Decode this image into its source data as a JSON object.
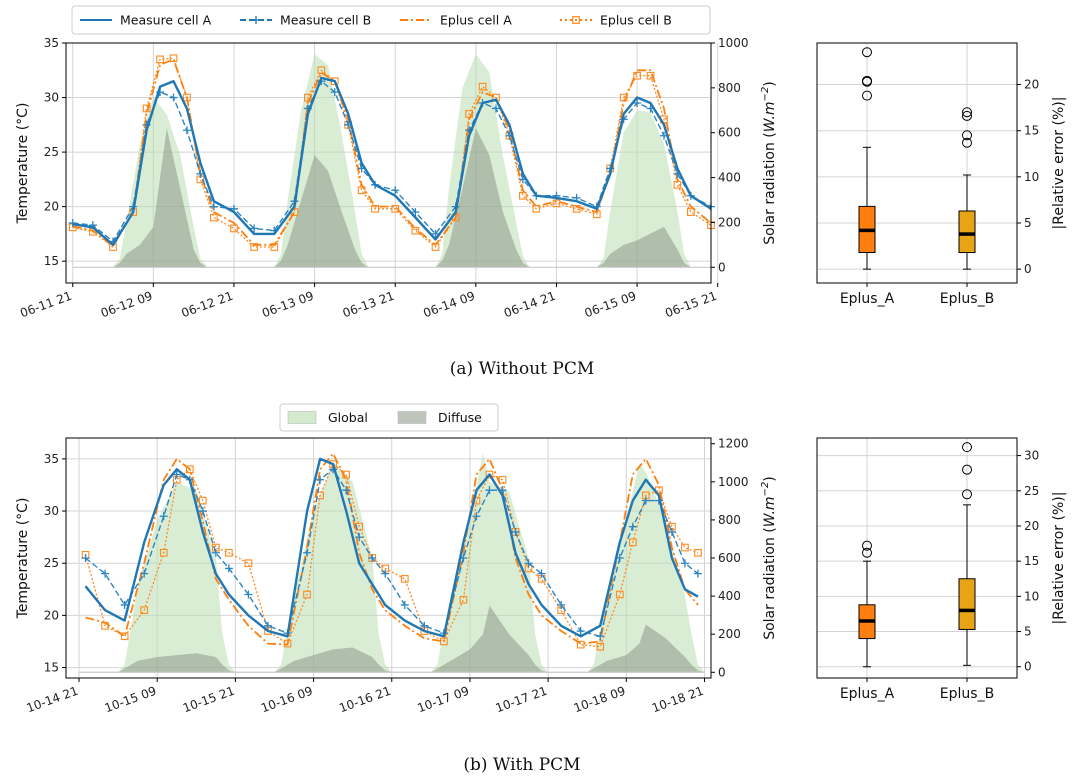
{
  "legend_top": [
    {
      "label": "Measure cell A",
      "color": "#1f77b4",
      "style": "solid"
    },
    {
      "label": "Measure cell B",
      "color": "#1f77b4",
      "style": "dashed-plus"
    },
    {
      "label": "Eplus cell A",
      "color": "#ff7f0e",
      "style": "dashdot"
    },
    {
      "label": "Eplus cell B",
      "color": "#ff7f0e",
      "style": "dotted-square"
    }
  ],
  "legend_mid": [
    {
      "label": "Global",
      "color": "#cfe8c8"
    },
    {
      "label": "Diffuse",
      "color": "#b9bfb4"
    }
  ],
  "chart_data": [
    {
      "type": "line",
      "caption": "(a) Without PCM",
      "ylabel": "Temperature (°C)",
      "y2label": "Solar radiation (W.m^-2)",
      "ylim": [
        13,
        35
      ],
      "y2lim": [
        -70,
        1000
      ],
      "yticks": [
        15,
        20,
        25,
        30,
        35
      ],
      "y2ticks": [
        0,
        200,
        400,
        600,
        800,
        1000
      ],
      "xlim": [
        -1,
        95
      ],
      "xticks": [
        {
          "x": 0,
          "label": "06-11 21"
        },
        {
          "x": 12,
          "label": "06-12 09"
        },
        {
          "x": 24,
          "label": "06-12 21"
        },
        {
          "x": 36,
          "label": "06-13 09"
        },
        {
          "x": 48,
          "label": "06-13 21"
        },
        {
          "x": 60,
          "label": "06-14 09"
        },
        {
          "x": 72,
          "label": "06-14 21"
        },
        {
          "x": 84,
          "label": "06-15 09"
        },
        {
          "x": 96,
          "label": "06-15 21"
        }
      ],
      "x_unit": "hours after 06-11 21:00",
      "temperature": {
        "x": [
          0,
          3,
          6,
          9,
          11,
          13,
          15,
          17,
          19,
          21,
          24,
          27,
          30,
          33,
          35,
          37,
          39,
          41,
          43,
          45,
          48,
          51,
          54,
          57,
          59,
          61,
          63,
          65,
          67,
          69,
          72,
          75,
          78,
          80,
          82,
          84,
          86,
          88,
          90,
          92,
          95
        ],
        "Measure cell A": [
          18.4,
          18.1,
          16.5,
          19.5,
          27.0,
          31.0,
          31.5,
          29.0,
          24.0,
          20.5,
          19.5,
          17.5,
          17.5,
          20.0,
          28.5,
          31.8,
          31.5,
          28.5,
          24.0,
          22.0,
          21.0,
          19.0,
          17.0,
          19.5,
          26.5,
          29.5,
          29.8,
          27.5,
          23.0,
          21.0,
          20.8,
          20.5,
          19.8,
          23.0,
          28.5,
          30.0,
          29.5,
          27.5,
          23.5,
          21.0,
          19.8
        ],
        "Measure cell B": [
          18.5,
          18.3,
          16.8,
          20.0,
          27.5,
          30.5,
          30.0,
          27.0,
          23.0,
          20.0,
          19.8,
          18.0,
          17.8,
          20.5,
          29.0,
          31.5,
          30.5,
          27.5,
          23.5,
          22.0,
          21.5,
          19.5,
          17.5,
          20.0,
          27.0,
          29.5,
          29.0,
          26.5,
          22.5,
          21.0,
          21.0,
          20.8,
          20.0,
          23.5,
          28.0,
          29.5,
          29.0,
          26.5,
          23.0,
          21.0,
          20.0
        ],
        "Eplus cell A": [
          18.2,
          17.8,
          16.4,
          19.5,
          28.5,
          33.0,
          33.5,
          30.0,
          23.0,
          19.5,
          18.5,
          16.5,
          16.5,
          19.5,
          29.5,
          32.3,
          31.5,
          28.0,
          22.0,
          20.0,
          20.0,
          18.0,
          16.5,
          19.0,
          28.0,
          30.5,
          30.0,
          27.0,
          21.5,
          20.0,
          20.5,
          20.0,
          19.5,
          23.0,
          29.5,
          32.5,
          32.5,
          29.0,
          22.5,
          20.0,
          18.5
        ],
        "Eplus cell B": [
          18.1,
          17.7,
          16.3,
          19.5,
          29.0,
          33.5,
          33.6,
          30.0,
          22.5,
          19.0,
          18.0,
          16.3,
          16.3,
          19.5,
          30.0,
          32.5,
          31.5,
          27.5,
          21.5,
          19.8,
          19.8,
          17.8,
          16.3,
          19.0,
          28.5,
          31.0,
          30.0,
          26.5,
          21.0,
          19.8,
          20.3,
          19.8,
          19.3,
          23.5,
          30.0,
          32.0,
          32.0,
          28.0,
          22.0,
          19.5,
          18.3
        ]
      },
      "radiation": {
        "x": [
          0,
          6,
          7,
          8,
          10,
          12,
          14,
          16,
          18,
          19,
          20,
          30,
          31,
          32,
          34,
          36,
          38,
          40,
          42,
          43,
          44,
          54,
          55,
          56,
          58,
          60,
          62,
          64,
          66,
          67,
          68,
          78,
          79,
          80,
          82,
          84,
          86,
          88,
          90,
          91,
          92,
          95
        ],
        "Global": [
          0,
          0,
          40,
          200,
          550,
          760,
          680,
          500,
          180,
          40,
          0,
          0,
          60,
          300,
          700,
          950,
          900,
          600,
          250,
          60,
          0,
          0,
          60,
          350,
          800,
          950,
          870,
          500,
          200,
          50,
          0,
          0,
          40,
          250,
          600,
          700,
          690,
          550,
          250,
          60,
          0,
          0
        ],
        "Diffuse": [
          0,
          0,
          20,
          60,
          100,
          180,
          620,
          350,
          80,
          20,
          0,
          0,
          30,
          100,
          300,
          500,
          430,
          250,
          80,
          20,
          0,
          0,
          30,
          100,
          350,
          620,
          500,
          250,
          80,
          20,
          0,
          0,
          20,
          60,
          100,
          120,
          150,
          180,
          80,
          20,
          0,
          0
        ]
      }
    },
    {
      "type": "box",
      "ylabel": "|Relative error (%)|",
      "ylim": [
        -1.5,
        24.5
      ],
      "yticks": [
        0,
        5,
        10,
        15,
        20
      ],
      "categories": [
        "Eplus_A",
        "Eplus_B"
      ],
      "colors": [
        "#ff7f0e",
        "#e8a317"
      ],
      "boxes": [
        {
          "whislo": 0,
          "q1": 1.8,
          "med": 4.2,
          "q3": 6.8,
          "whishi": 13.2,
          "fliers": [
            18.8,
            20.3,
            20.4,
            23.5
          ]
        },
        {
          "whislo": 0,
          "q1": 1.8,
          "med": 3.8,
          "q3": 6.3,
          "whishi": 10.2,
          "fliers": [
            13.7,
            14.5,
            16.6,
            17.0
          ]
        }
      ]
    },
    {
      "type": "line",
      "caption": "(b) With PCM",
      "ylabel": "Temperature (°C)",
      "y2label": "Solar radiation (W.m^-2)",
      "ylim": [
        14,
        37
      ],
      "y2lim": [
        -30,
        1230
      ],
      "yticks": [
        15,
        20,
        25,
        30,
        35
      ],
      "y2ticks": [
        0,
        200,
        400,
        600,
        800,
        1000,
        1200
      ],
      "xlim": [
        -2,
        97
      ],
      "xticks": [
        {
          "x": 0,
          "label": "10-14 21"
        },
        {
          "x": 12,
          "label": "10-15 09"
        },
        {
          "x": 24,
          "label": "10-15 21"
        },
        {
          "x": 36,
          "label": "10-16 09"
        },
        {
          "x": 48,
          "label": "10-16 21"
        },
        {
          "x": 60,
          "label": "10-17 09"
        },
        {
          "x": 72,
          "label": "10-17 21"
        },
        {
          "x": 84,
          "label": "10-18 09"
        },
        {
          "x": 96,
          "label": "10-18 21"
        }
      ],
      "x_unit": "hours after 10-14 21:00",
      "temperature": {
        "x": [
          1,
          4,
          7,
          10,
          13,
          15,
          17,
          19,
          21,
          23,
          26,
          29,
          32,
          35,
          37,
          39,
          41,
          43,
          45,
          47,
          50,
          53,
          56,
          59,
          61,
          63,
          65,
          67,
          69,
          71,
          74,
          77,
          80,
          83,
          85,
          87,
          89,
          91,
          93,
          95
        ],
        "Measure cell A": [
          22.8,
          20.5,
          19.5,
          27.0,
          32.5,
          34.0,
          33.0,
          28.0,
          24.0,
          22.0,
          20.0,
          18.5,
          18.0,
          30.0,
          35.0,
          34.5,
          30.0,
          25.0,
          23.0,
          21.0,
          19.5,
          18.5,
          18.0,
          27.0,
          32.0,
          33.5,
          31.5,
          26.0,
          23.0,
          21.0,
          19.0,
          18.0,
          19.0,
          27.0,
          31.0,
          33.0,
          31.5,
          25.5,
          22.5,
          21.8
        ],
        "Measure cell B": [
          25.5,
          24.0,
          21.0,
          24.0,
          29.5,
          33.5,
          33.0,
          30.0,
          26.0,
          24.5,
          22.0,
          19.0,
          18.3,
          26.0,
          33.0,
          34.0,
          32.0,
          27.5,
          25.5,
          24.0,
          21.0,
          19.0,
          18.3,
          25.5,
          29.5,
          32.0,
          32.0,
          28.0,
          25.0,
          24.0,
          21.0,
          18.5,
          18.0,
          25.5,
          28.5,
          31.0,
          31.0,
          28.0,
          25.0,
          24.0
        ],
        "Eplus cell A": [
          19.8,
          19.3,
          18.0,
          25.0,
          33.0,
          35.0,
          34.0,
          29.0,
          23.5,
          21.5,
          19.0,
          17.3,
          17.2,
          26.5,
          34.0,
          35.5,
          33.0,
          26.0,
          22.5,
          20.5,
          19.0,
          17.8,
          17.5,
          26.0,
          33.5,
          35.0,
          32.0,
          25.5,
          22.0,
          20.0,
          18.5,
          17.3,
          17.5,
          27.0,
          33.5,
          35.0,
          32.5,
          26.5,
          22.5,
          21.0
        ],
        "Eplus cell B": [
          25.8,
          19.0,
          18.0,
          20.5,
          26.0,
          33.0,
          34.0,
          31.0,
          26.5,
          26.0,
          25.0,
          18.5,
          17.3,
          22.0,
          31.5,
          34.5,
          33.5,
          28.5,
          25.5,
          24.5,
          23.5,
          18.5,
          17.5,
          21.5,
          31.0,
          33.5,
          33.0,
          28.0,
          24.5,
          23.5,
          20.5,
          17.2,
          17.0,
          22.0,
          27.0,
          31.5,
          32.0,
          28.5,
          26.5,
          26.0
        ]
      },
      "radiation": {
        "x": [
          0,
          6,
          7,
          9,
          12,
          15,
          18,
          21,
          22,
          23,
          24,
          30,
          31,
          33,
          36,
          39,
          42,
          45,
          46,
          47,
          48,
          54,
          55,
          57,
          60,
          62,
          63,
          66,
          69,
          70,
          71,
          72,
          78,
          79,
          81,
          84,
          86,
          87,
          90,
          93,
          94,
          95,
          96
        ],
        "Global": [
          0,
          0,
          40,
          450,
          800,
          1000,
          950,
          600,
          200,
          40,
          0,
          0,
          40,
          400,
          850,
          1100,
          1000,
          600,
          200,
          40,
          0,
          0,
          40,
          400,
          800,
          1150,
          1000,
          950,
          600,
          200,
          40,
          0,
          0,
          40,
          400,
          800,
          1100,
          1050,
          800,
          400,
          200,
          40,
          0
        ],
        "Diffuse": [
          0,
          0,
          20,
          60,
          80,
          90,
          100,
          80,
          40,
          10,
          0,
          0,
          20,
          60,
          90,
          120,
          130,
          80,
          40,
          10,
          0,
          0,
          20,
          60,
          120,
          200,
          350,
          200,
          90,
          40,
          10,
          0,
          0,
          20,
          60,
          90,
          150,
          250,
          180,
          80,
          40,
          10,
          0
        ]
      }
    },
    {
      "type": "box",
      "ylabel": "|Relative error (%)|",
      "ylim": [
        -1.6,
        32.5
      ],
      "yticks": [
        0,
        5,
        10,
        15,
        20,
        25,
        30
      ],
      "categories": [
        "Eplus_A",
        "Eplus_B"
      ],
      "colors": [
        "#ff7f0e",
        "#e8a317"
      ],
      "boxes": [
        {
          "whislo": 0,
          "q1": 4.0,
          "med": 6.5,
          "q3": 8.8,
          "whishi": 15.0,
          "fliers": [
            16.2,
            17.2
          ]
        },
        {
          "whislo": 0.2,
          "q1": 5.3,
          "med": 8.0,
          "q3": 12.5,
          "whishi": 23.0,
          "fliers": [
            24.5,
            28.0,
            31.2
          ]
        }
      ]
    }
  ]
}
